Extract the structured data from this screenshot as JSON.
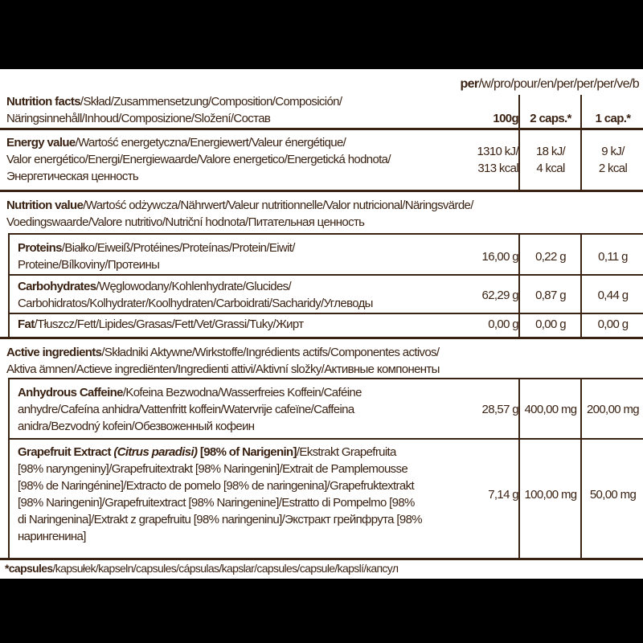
{
  "per_label": {
    "bold": "per",
    "rest": "/w/pro/pour/en/per/per/per/ve/b"
  },
  "header": {
    "bold": "Nutrition facts",
    "lines": [
      "/Skład/Zusammensetzung/Composition/Composición/",
      "Näringsinnehåll/Inhoud/Composizione/Složení/Состав"
    ],
    "columns": [
      "100g",
      "2 caps.*",
      "1 cap.*"
    ]
  },
  "energy": {
    "bold": "Energy value",
    "lines": [
      "/Wartość energetyczna/Energiewert/Valeur énergétique/",
      "Valor energético/Energi/Energiewaarde/Valore energetico/Energetická hodnota/",
      "Энергетическая ценность"
    ],
    "values": [
      [
        "1310 kJ/",
        "313 kcal"
      ],
      [
        "18 kJ/",
        "4 kcal"
      ],
      [
        "9 kJ/",
        "2 kcal"
      ]
    ]
  },
  "nutrition_value": {
    "bold": "Nutrition value",
    "lines": [
      "/Wartość odżywcza/Nährwert/Valeur nutritionnelle/Valor nutricional/Näringsvärde/",
      "Voedingswaarde/Valore nutritivo/Nutriční hodnota/Питательная ценность"
    ]
  },
  "proteins": {
    "bold": "Proteins",
    "lines": [
      "/Białko/Eiweiß/Protéines/Proteínas/Protein/Eiwit/",
      "Proteine/Bílkoviny/Протеины"
    ],
    "values": [
      "16,00 g",
      "0,22 g",
      "0,11 g"
    ]
  },
  "carbohydrates": {
    "bold": "Carbohydrates",
    "lines": [
      "/Węglowodany/Kohlenhydrate/Glucides/",
      "Carbohidratos/Kolhydrater/Koolhydraten/Carboidrati/Sacharidy/Углеводы"
    ],
    "values": [
      "62,29 g",
      "0,87 g",
      "0,44 g"
    ]
  },
  "fat": {
    "bold": "Fat",
    "lines": [
      "/Tłuszcz/Fett/Lipides/Grasas/Fett/Vet/Grassi/Tuky/Жирт"
    ],
    "values": [
      "0,00 g",
      "0,00 g",
      "0,00 g"
    ]
  },
  "active": {
    "bold": "Active ingredients",
    "lines": [
      "/Składniki Aktywne/Wirkstoffe/Ingrédients actifs/Componentes activos/",
      "Aktiva ämnen/Actieve ingrediënten/Ingredienti attivi/Aktivní složky/Активные компоненты"
    ]
  },
  "caffeine": {
    "bold": "Anhydrous Caffeine",
    "lines": [
      "/Kofeina Bezwodna/Wasserfreies Koffein/Caféine",
      "anhydre/Cafeína anhidra/Vattenfritt koffein/Watervrije cafeïne/Caffeina",
      "anidra/Bezvodný kofein/Обезвоженный кофеин"
    ],
    "values": [
      "28,57 g",
      "400,00 mg",
      "200,00 mg"
    ]
  },
  "grapefruit": {
    "bold": "Grapefruit Extract ",
    "italic": "(Citrus paradisi)",
    "bold2": " [98% of Narigenin]",
    "lines": [
      "/Ekstrakt Grapefruita",
      "[98% naryngeniny]/Grapefruitextrakt [98% Naringenin]/Extrait de Pamplemousse",
      "[98% de Naringénine]/Extracto de pomelo [98% de naringenina]/Grapefruktextrakt",
      "[98% Naringenin]/Grapefruitextract [98% Naringenine]/Estratto di Pompelmo [98%",
      "di Naringenina]/Extrakt z grapefruitu [98% naringeninu]/Экстракт грейпфрута [98%",
      "нарингенина]"
    ],
    "values": [
      "7,14 g",
      "100,00 mg",
      "50,00 mg"
    ]
  },
  "footnote": {
    "bold": "*capsules",
    "rest": "/kapsułek/kapseln/capsules/cápsulas/kapslar/capsules/capsule/kapslí/капсул"
  },
  "colors": {
    "text": "#3b2314",
    "background": "#ffffff",
    "frame": "#000000"
  }
}
